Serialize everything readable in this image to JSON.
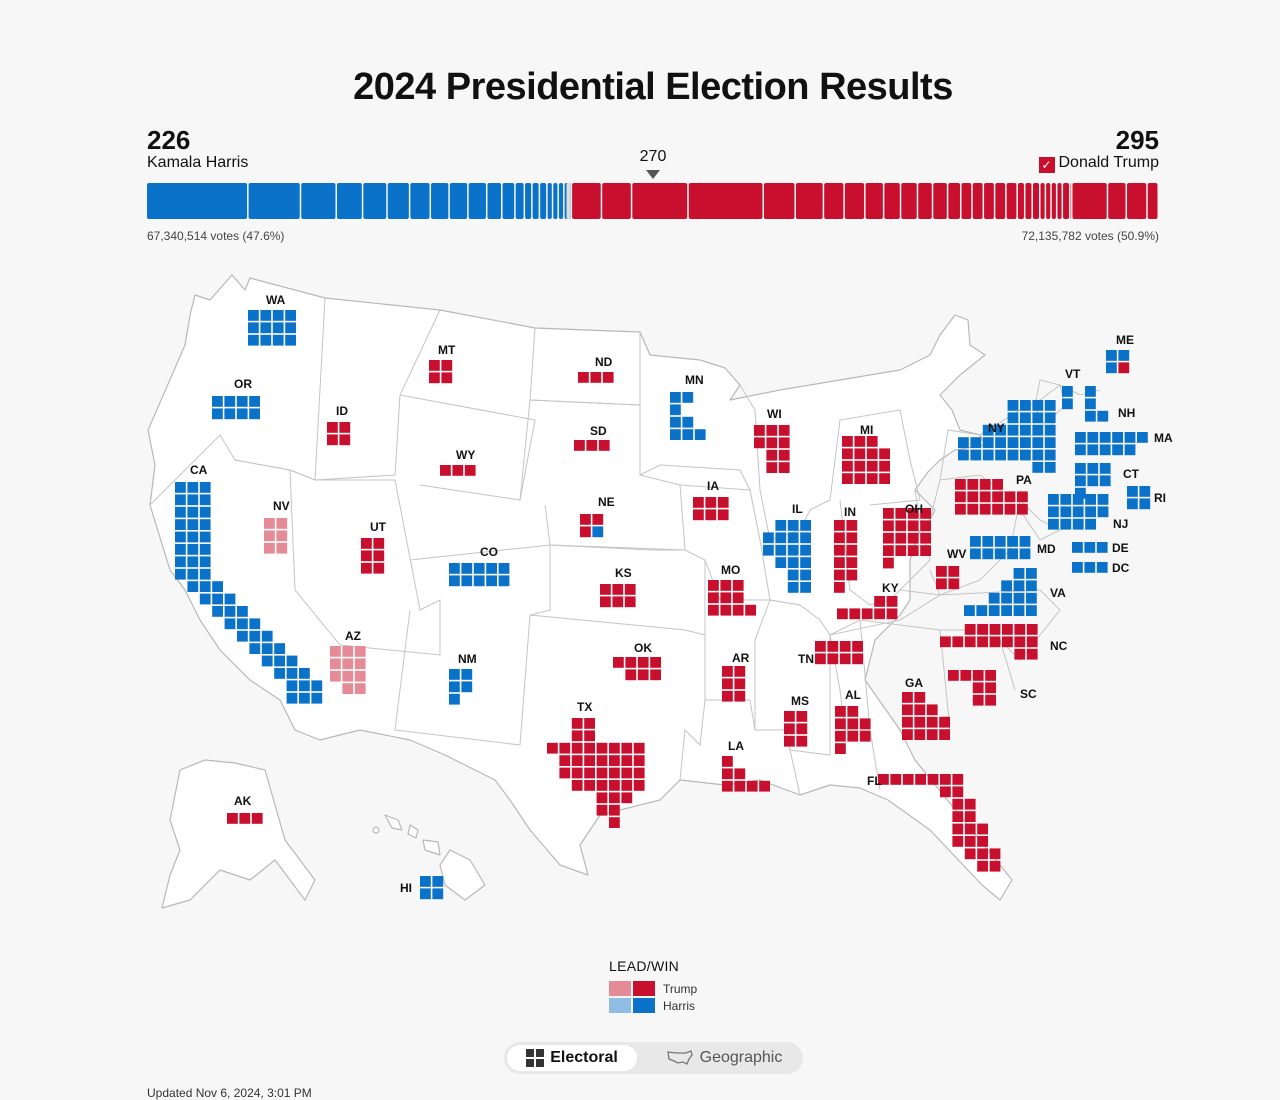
{
  "title": "2024 Presidential Election Results",
  "harris": {
    "name": "Kamala Harris",
    "electoral_votes": "226",
    "votes_text": "67,340,514 votes (47.6%)"
  },
  "trump": {
    "name": "Donald Trump",
    "electoral_votes": "295",
    "votes_text": "72,135,782 votes (50.9%)",
    "check_icon": "✓"
  },
  "threshold_label": "270",
  "colors": {
    "harris": "#0a72c9",
    "harris_lead": "#8fbde3",
    "trump": "#c8102e",
    "trump_lead": "#e58b98",
    "undecided": "#dcdcdc"
  },
  "legend": {
    "title": "LEAD/WIN",
    "trump": "Trump",
    "harris": "Harris"
  },
  "toggle": {
    "electoral": "Electoral",
    "geographic": "Geographic"
  },
  "updated": "Updated Nov 6, 2024, 3:01 PM",
  "states": [
    {
      "abbr": "WA",
      "ev": 12,
      "party": "H"
    },
    {
      "abbr": "OR",
      "ev": 8,
      "party": "H"
    },
    {
      "abbr": "CA",
      "ev": 54,
      "party": "H"
    },
    {
      "abbr": "NV",
      "ev": 6,
      "party": "TL"
    },
    {
      "abbr": "ID",
      "ev": 4,
      "party": "T"
    },
    {
      "abbr": "MT",
      "ev": 4,
      "party": "T"
    },
    {
      "abbr": "WY",
      "ev": 3,
      "party": "T"
    },
    {
      "abbr": "UT",
      "ev": 6,
      "party": "T"
    },
    {
      "abbr": "AZ",
      "ev": 11,
      "party": "TL"
    },
    {
      "abbr": "CO",
      "ev": 10,
      "party": "H"
    },
    {
      "abbr": "NM",
      "ev": 5,
      "party": "H"
    },
    {
      "abbr": "ND",
      "ev": 3,
      "party": "T"
    },
    {
      "abbr": "SD",
      "ev": 3,
      "party": "T"
    },
    {
      "abbr": "NE",
      "ev": 5,
      "party": "T",
      "note": "4 Trump, 1 Harris"
    },
    {
      "abbr": "KS",
      "ev": 6,
      "party": "T"
    },
    {
      "abbr": "OK",
      "ev": 7,
      "party": "T"
    },
    {
      "abbr": "TX",
      "ev": 40,
      "party": "T"
    },
    {
      "abbr": "MN",
      "ev": 10,
      "party": "H"
    },
    {
      "abbr": "IA",
      "ev": 6,
      "party": "T"
    },
    {
      "abbr": "MO",
      "ev": 10,
      "party": "T"
    },
    {
      "abbr": "AR",
      "ev": 6,
      "party": "T"
    },
    {
      "abbr": "LA",
      "ev": 8,
      "party": "T"
    },
    {
      "abbr": "WI",
      "ev": 10,
      "party": "T"
    },
    {
      "abbr": "IL",
      "ev": 19,
      "party": "H"
    },
    {
      "abbr": "MI",
      "ev": 15,
      "party": "T"
    },
    {
      "abbr": "IN",
      "ev": 11,
      "party": "T"
    },
    {
      "abbr": "OH",
      "ev": 17,
      "party": "T"
    },
    {
      "abbr": "KY",
      "ev": 8,
      "party": "T"
    },
    {
      "abbr": "TN",
      "ev": 11,
      "party": "T"
    },
    {
      "abbr": "MS",
      "ev": 6,
      "party": "T"
    },
    {
      "abbr": "AL",
      "ev": 9,
      "party": "T"
    },
    {
      "abbr": "GA",
      "ev": 16,
      "party": "T"
    },
    {
      "abbr": "FL",
      "ev": 30,
      "party": "T"
    },
    {
      "abbr": "SC",
      "ev": 9,
      "party": "T"
    },
    {
      "abbr": "NC",
      "ev": 16,
      "party": "T"
    },
    {
      "abbr": "VA",
      "ev": 13,
      "party": "H"
    },
    {
      "abbr": "WV",
      "ev": 4,
      "party": "T"
    },
    {
      "abbr": "PA",
      "ev": 19,
      "party": "T"
    },
    {
      "abbr": "NY",
      "ev": 28,
      "party": "H"
    },
    {
      "abbr": "VT",
      "ev": 3,
      "party": "H"
    },
    {
      "abbr": "NH",
      "ev": 4,
      "party": "H"
    },
    {
      "abbr": "ME",
      "ev": 4,
      "party": "H",
      "note": "3 Harris, 1 Trump"
    },
    {
      "abbr": "MA",
      "ev": 11,
      "party": "H"
    },
    {
      "abbr": "CT",
      "ev": 7,
      "party": "H"
    },
    {
      "abbr": "RI",
      "ev": 4,
      "party": "H"
    },
    {
      "abbr": "NJ",
      "ev": 14,
      "party": "H"
    },
    {
      "abbr": "MD",
      "ev": 10,
      "party": "H"
    },
    {
      "abbr": "DE",
      "ev": 3,
      "party": "H"
    },
    {
      "abbr": "DC",
      "ev": 3,
      "party": "H"
    },
    {
      "abbr": "AK",
      "ev": 3,
      "party": "T"
    },
    {
      "abbr": "HI",
      "ev": 4,
      "party": "H"
    }
  ]
}
